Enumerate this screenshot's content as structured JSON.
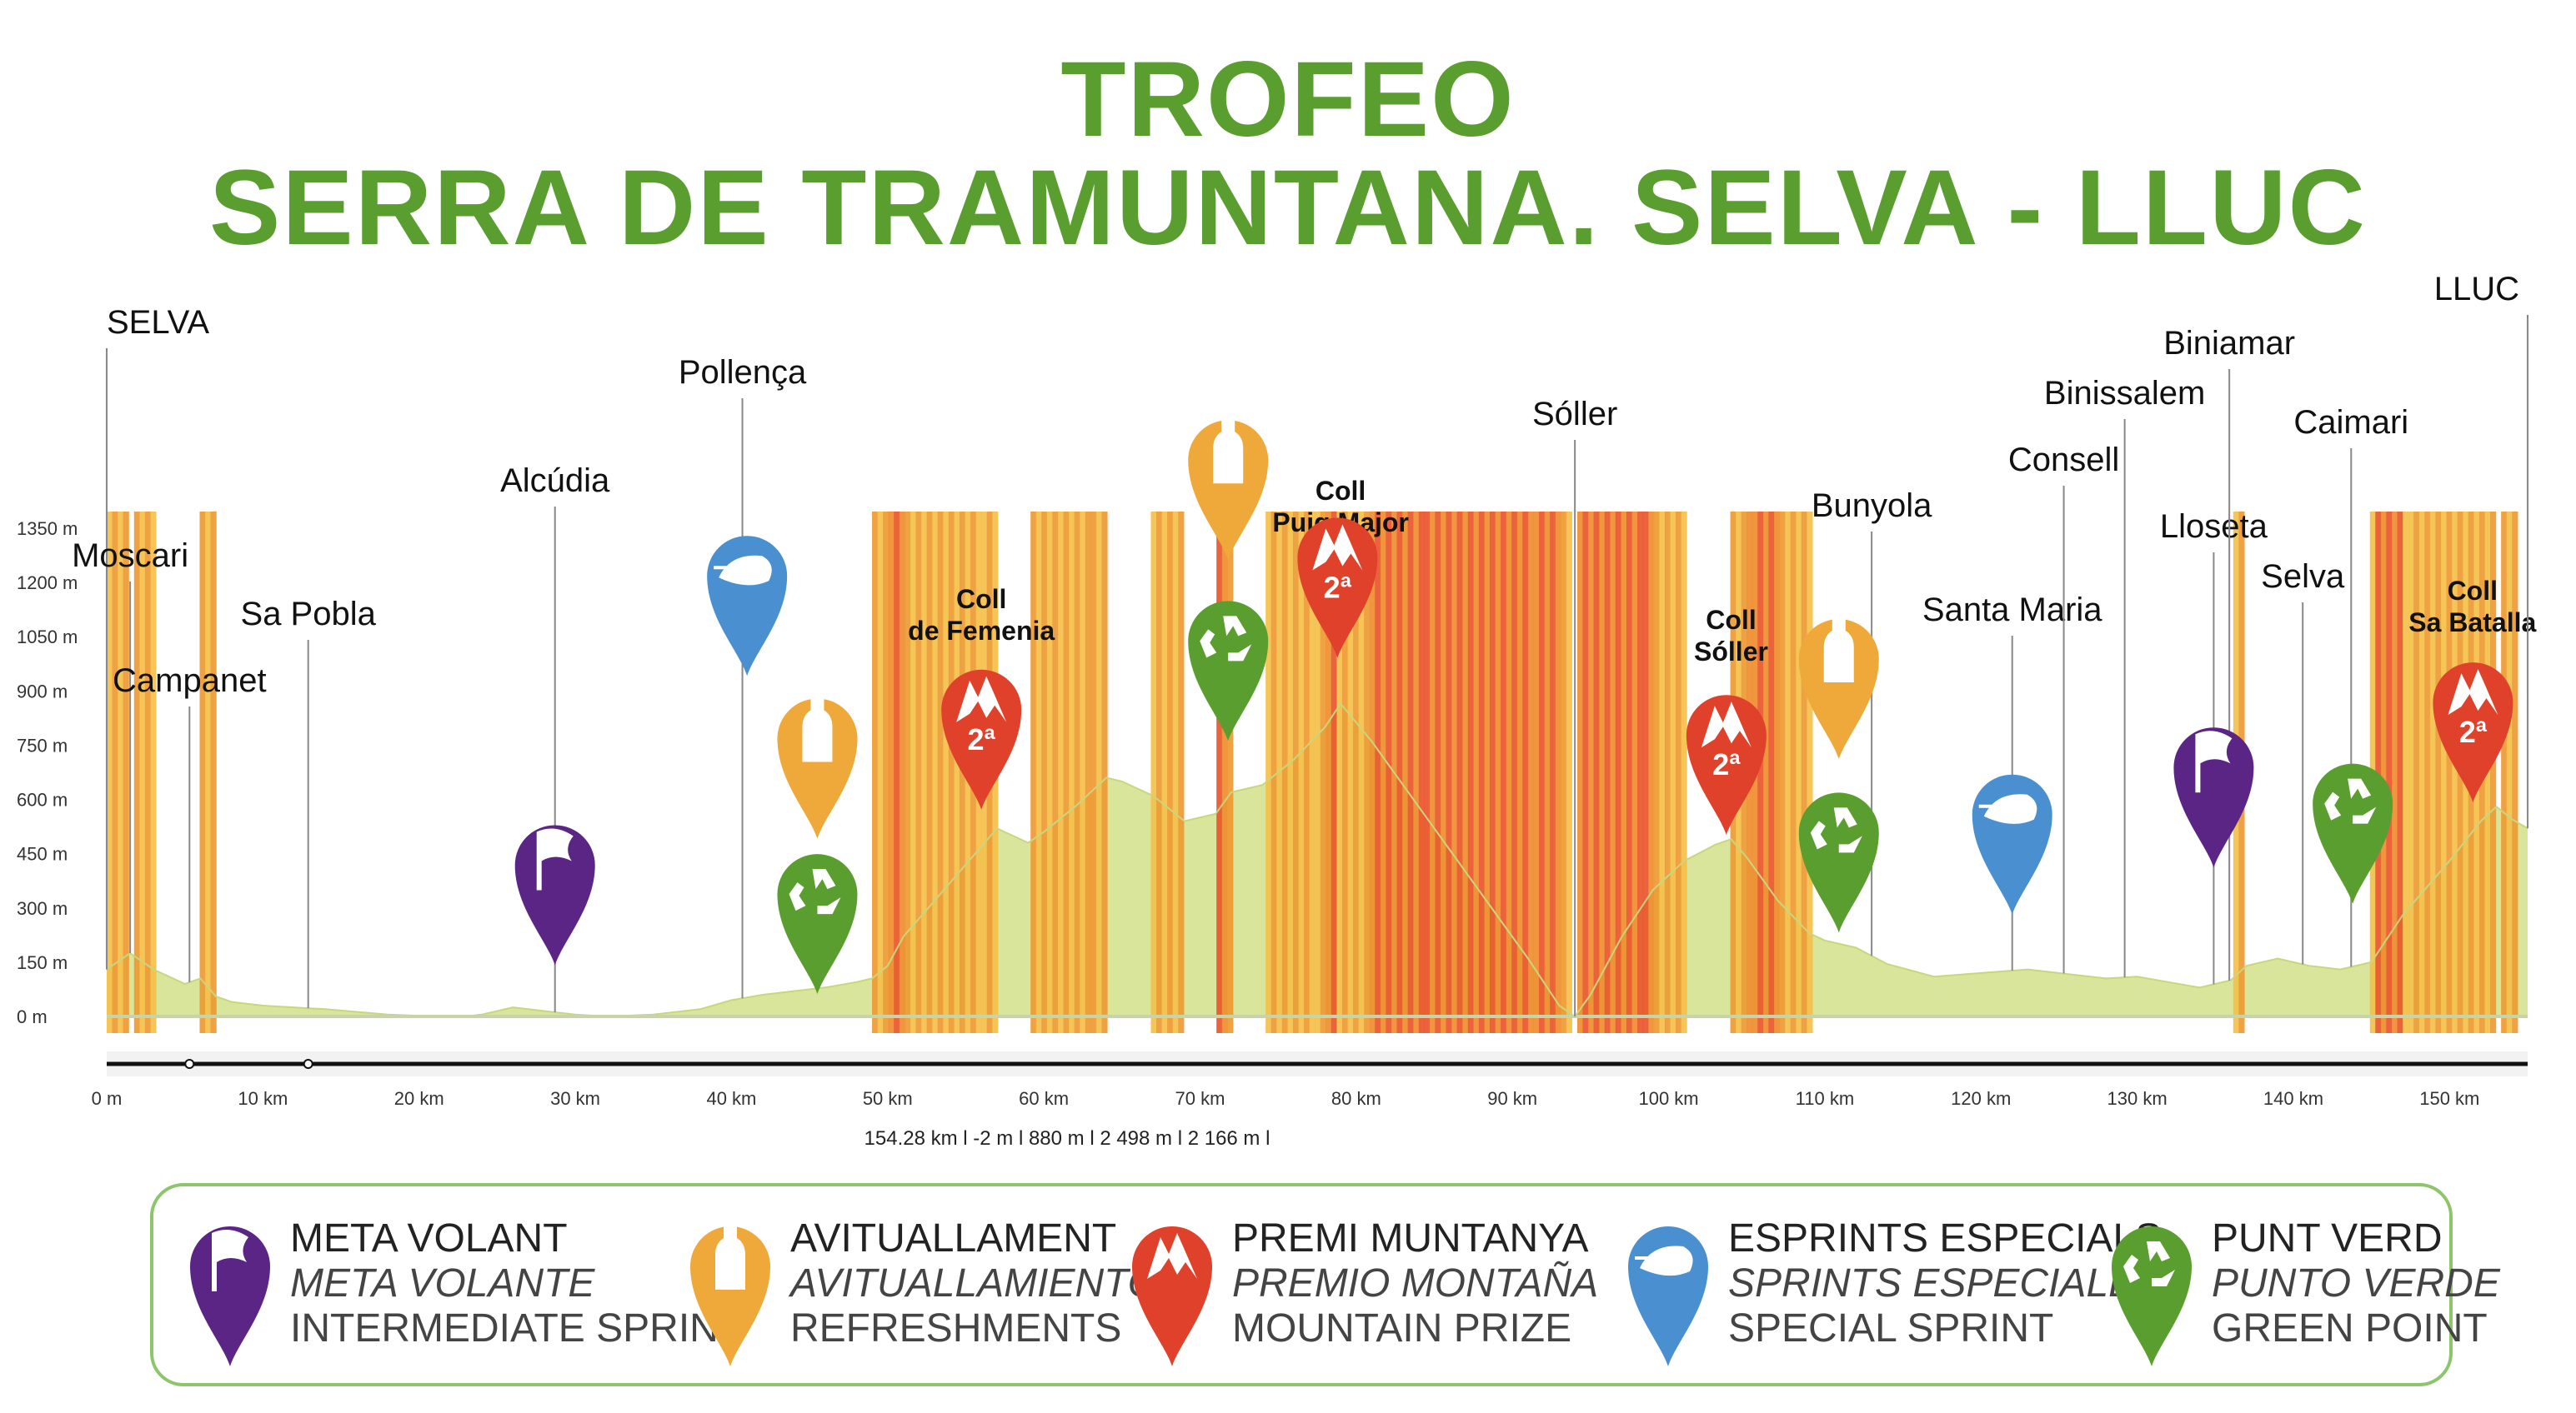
{
  "title": {
    "line1": "TROFEO",
    "line2": "SERRA DE TRAMUNTANA. SELVA - LLUC"
  },
  "colors": {
    "title": "#5a9e2f",
    "meta_volant": "#5b2586",
    "avituallament": "#efa93a",
    "premi_muntanya": "#e0412b",
    "esprints": "#4a90d0",
    "punt_verd": "#5a9e2f",
    "profile_low": "#d9e59a",
    "profile_high": "#e6552d"
  },
  "chart_data": {
    "type": "area",
    "xlabel": "",
    "ylabel": "",
    "xlim": [
      0,
      155
    ],
    "ylim": [
      0,
      1350
    ],
    "x_ticks": [
      "0 m",
      "10 km",
      "20 km",
      "30 km",
      "40 km",
      "50 km",
      "60 km",
      "70 km",
      "80 km",
      "90 km",
      "100 km",
      "110 km",
      "120 km",
      "130 km",
      "140 km",
      "150 km"
    ],
    "y_ticks": [
      "0 m",
      "150 m",
      "300 m",
      "450 m",
      "600 m",
      "750 m",
      "900 m",
      "1050 m",
      "1200 m",
      "1350 m"
    ],
    "profile": {
      "x": [
        0,
        1.5,
        3,
        5,
        6,
        7,
        8,
        10,
        14,
        18,
        21,
        23,
        24,
        26,
        28,
        30,
        32,
        35,
        38,
        40,
        42,
        44,
        46,
        48,
        49,
        50,
        51,
        53,
        55,
        57,
        59,
        60,
        62,
        64,
        65,
        67,
        69,
        71,
        72,
        74,
        76,
        78,
        79,
        81,
        83,
        85,
        87,
        89,
        91,
        93,
        94,
        95,
        97,
        99,
        101,
        103,
        104,
        105,
        107,
        109,
        110,
        112,
        114,
        117,
        120,
        123,
        126,
        128,
        130,
        132,
        134,
        136,
        137,
        139,
        141,
        143,
        145,
        147,
        150,
        152,
        153,
        154,
        155
      ],
      "y": [
        130,
        175,
        130,
        90,
        105,
        55,
        40,
        30,
        20,
        5,
        0,
        0,
        5,
        25,
        15,
        5,
        0,
        5,
        20,
        45,
        60,
        70,
        80,
        95,
        105,
        140,
        220,
        320,
        420,
        520,
        480,
        510,
        580,
        660,
        650,
        610,
        540,
        560,
        620,
        640,
        710,
        800,
        865,
        760,
        640,
        520,
        400,
        280,
        160,
        30,
        0,
        60,
        220,
        350,
        430,
        475,
        490,
        440,
        320,
        230,
        210,
        190,
        145,
        110,
        120,
        130,
        115,
        105,
        110,
        95,
        80,
        100,
        140,
        160,
        140,
        130,
        150,
        280,
        430,
        540,
        580,
        545,
        520
      ]
    },
    "places": [
      {
        "name": "SELVA",
        "km": 0
      },
      {
        "name": "Moscari",
        "km": 1.5
      },
      {
        "name": "Campanet",
        "km": 5.3
      },
      {
        "name": "Sa Pobla",
        "km": 12.9
      },
      {
        "name": "Alcúdia",
        "km": 28.7
      },
      {
        "name": "Pollença",
        "km": 40.7
      },
      {
        "name": "Coll\nde Femenia",
        "km": 56
      },
      {
        "name": "Coll\nPuig Major",
        "km": 79
      },
      {
        "name": "Sóller",
        "km": 94
      },
      {
        "name": "Coll\nSóller",
        "km": 104
      },
      {
        "name": "Bunyola",
        "km": 113
      },
      {
        "name": "Santa Maria",
        "km": 122
      },
      {
        "name": "Consell",
        "km": 125.3
      },
      {
        "name": "Binissalem",
        "km": 129.2
      },
      {
        "name": "Lloseta",
        "km": 134.9
      },
      {
        "name": "Biniamar",
        "km": 135.9
      },
      {
        "name": "Selva",
        "km": 140.6
      },
      {
        "name": "Caimari",
        "km": 143.7
      },
      {
        "name": "Coll\nSa Batalla",
        "km": 152
      },
      {
        "name": "LLUC",
        "km": 155
      }
    ],
    "markers": [
      {
        "type": "meta_volant",
        "km": 28.7,
        "elev": 280
      },
      {
        "type": "esprints",
        "km": 41,
        "elev": 1080
      },
      {
        "type": "avituallament",
        "km": 45.5,
        "elev": 630
      },
      {
        "type": "punt_verd",
        "km": 45.5,
        "elev": 200
      },
      {
        "type": "premi_muntanya",
        "km": 56,
        "elev": 710,
        "label": "2ª"
      },
      {
        "type": "avituallament",
        "km": 71.8,
        "elev": 1400
      },
      {
        "type": "punt_verd",
        "km": 71.8,
        "elev": 900
      },
      {
        "type": "premi_muntanya",
        "km": 78.8,
        "elev": 1130,
        "label": "2ª"
      },
      {
        "type": "premi_muntanya",
        "km": 103.7,
        "elev": 640,
        "label": "2ª"
      },
      {
        "type": "avituallament",
        "km": 110.9,
        "elev": 850
      },
      {
        "type": "punt_verd",
        "km": 110.9,
        "elev": 370
      },
      {
        "type": "esprints",
        "km": 122,
        "elev": 420
      },
      {
        "type": "meta_volant",
        "km": 134.9,
        "elev": 550
      },
      {
        "type": "punt_verd",
        "km": 143.8,
        "elev": 450
      },
      {
        "type": "premi_muntanya",
        "km": 151.5,
        "elev": 730,
        "label": "2ª"
      }
    ],
    "summary": "154.28 km l  -2 m l  880 m l  2 498 m l  2 166 m l"
  },
  "legend": [
    {
      "type": "meta_volant",
      "line1": "META VOLANT",
      "line2": "META VOLANTE",
      "line3": "INTERMEDIATE SPRINT"
    },
    {
      "type": "avituallament",
      "line1": "AVITUALLAMENT",
      "line2": "AVITUALLAMIENTO",
      "line3": "REFRESHMENTS"
    },
    {
      "type": "premi_muntanya",
      "line1": "PREMI MUNTANYA",
      "line2": "PREMIO MONTAÑA",
      "line3": "MOUNTAIN PRIZE"
    },
    {
      "type": "esprints",
      "line1": "ESPRINTS ESPECIALS",
      "line2": "SPRINTS ESPECIALES",
      "line3": "SPECIAL SPRINT"
    },
    {
      "type": "punt_verd",
      "line1": "PUNT VERD",
      "line2": "PUNTO VERDE",
      "line3": "GREEN POINT"
    }
  ]
}
